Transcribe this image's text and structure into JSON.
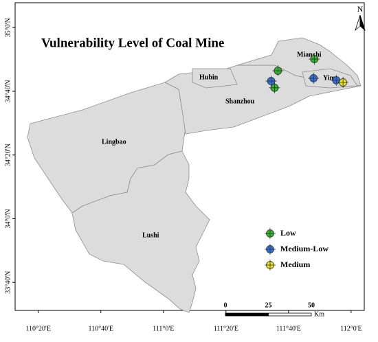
{
  "title": "Vulnerability Level of Coal Mine",
  "north": "N",
  "regions": [
    "Mianchi",
    "Hubin",
    "Yima",
    "Shanzhou",
    "Lingbao",
    "Lushi"
  ],
  "map": {
    "xlim": [
      110.21,
      112.07
    ],
    "ylim": [
      33.52,
      35.13
    ],
    "xticks": [
      {
        "value": 110.3333,
        "label": "110°20'E"
      },
      {
        "value": 110.6667,
        "label": "110°40'E"
      },
      {
        "value": 111,
        "label": "111°0'E"
      },
      {
        "value": 111.3333,
        "label": "111°20'E"
      },
      {
        "value": 111.6667,
        "label": "111°40'E"
      },
      {
        "value": 112,
        "label": "112°0'E"
      }
    ],
    "yticks": [
      {
        "value": 33.6667,
        "label": "33°40'N"
      },
      {
        "value": 34,
        "label": "34°0'N"
      },
      {
        "value": 34.3333,
        "label": "34°20'N"
      },
      {
        "value": 34.6667,
        "label": "34°40'N"
      },
      {
        "value": 35,
        "label": "35°0'N"
      }
    ]
  },
  "series": [
    {
      "name": "Low",
      "color": "#2db82d",
      "lon": [
        111.61,
        111.804,
        111.592
      ],
      "lat": [
        34.774,
        34.835,
        34.685
      ]
    },
    {
      "name": "Medium-Low",
      "color": "#2f6fd6",
      "lon": [
        111.574,
        111.8,
        111.921
      ],
      "lat": [
        34.72,
        34.735,
        34.724
      ]
    },
    {
      "name": "Medium",
      "color": "#e8e020",
      "lon": [
        111.957
      ],
      "lat": [
        34.713
      ]
    }
  ],
  "scale": {
    "ticks": [
      0,
      25,
      50
    ],
    "unit": "Km"
  }
}
